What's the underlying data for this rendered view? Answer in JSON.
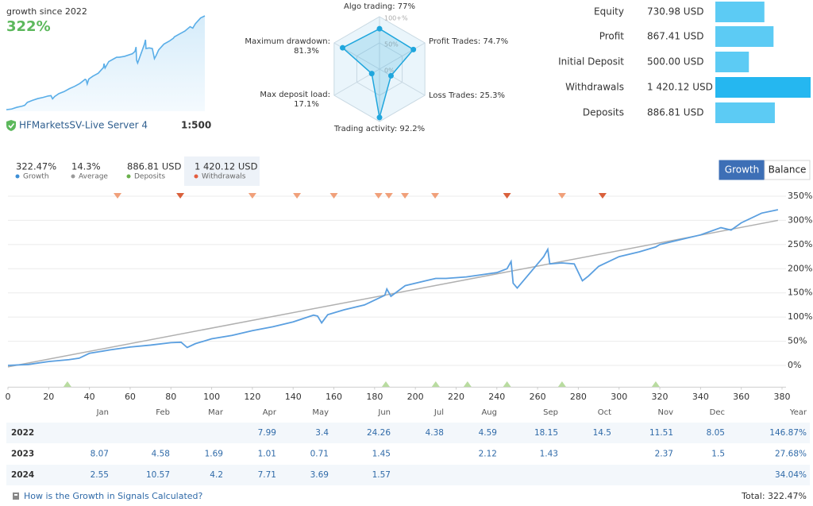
{
  "header": {
    "title": "growth since 2022",
    "growth": "322%",
    "server": "HFMarketsSV-Live Server 4",
    "leverage": "1:500"
  },
  "chart_data": [
    {
      "type": "radar",
      "labels": [
        [
          "Algo trading: 77%"
        ],
        [
          "Profit Trades: 74.7%"
        ],
        [
          "Loss Trades: 25.3%"
        ],
        [
          "Trading activity: 92.2%"
        ],
        [
          "Max deposit load:",
          "17.1%"
        ],
        [
          "Maximum drawdown:",
          "81.3%"
        ]
      ],
      "values": [
        77,
        74.7,
        25.3,
        92.2,
        17.1,
        81.3
      ],
      "rlim": [
        0,
        100
      ],
      "rticks": [
        {
          "value": 100,
          "label": "100+%"
        },
        {
          "value": 50,
          "label": "50%"
        },
        {
          "value": 0,
          "label": "0%"
        }
      ],
      "color": "#1fa6dd"
    },
    {
      "type": "hbar",
      "categories": [
        "Equity",
        "Profit",
        "Initial Deposit",
        "Withdrawals",
        "Deposits"
      ],
      "values": [
        730.98,
        867.41,
        500,
        1420.12,
        886.81
      ],
      "value_labels": [
        "730.98 USD",
        "867.41 USD",
        "500.00 USD",
        "1 420.12 USD",
        "886.81 USD"
      ],
      "colors": [
        "#5ccbf4",
        "#5ccbf4",
        "#5ccbf4",
        "#25b7f0",
        "#5ccbf4"
      ],
      "xlim": [
        0,
        1420.12
      ]
    },
    {
      "type": "line",
      "xlim": [
        0,
        380
      ],
      "xticks": [
        0,
        20,
        40,
        60,
        80,
        100,
        120,
        140,
        160,
        180,
        200,
        220,
        240,
        260,
        280,
        300,
        320,
        340,
        360,
        380
      ],
      "ylim": [
        -45,
        362
      ],
      "yticks": [
        {
          "value": 0,
          "label": "0%"
        },
        {
          "value": 50,
          "label": "50%"
        },
        {
          "value": 100,
          "label": "100%"
        },
        {
          "value": 150,
          "label": "150%"
        },
        {
          "value": 200,
          "label": "200%"
        },
        {
          "value": 250,
          "label": "250%"
        },
        {
          "value": 300,
          "label": "300%"
        },
        {
          "value": 350,
          "label": "350%"
        }
      ],
      "grid": true,
      "series": [
        {
          "color": "#5a9fe0",
          "x": [
            0,
            10,
            20,
            30,
            35,
            40,
            50,
            60,
            70,
            80,
            85,
            88,
            92,
            100,
            110,
            120,
            130,
            140,
            150,
            152,
            154,
            157,
            165,
            175,
            180,
            185,
            186,
            188,
            195,
            205,
            210,
            215,
            225,
            240,
            245,
            247,
            248,
            250,
            252,
            258,
            260,
            263,
            265,
            266,
            272,
            278,
            282,
            285,
            290,
            300,
            310,
            318,
            320,
            330,
            340,
            350,
            355,
            360,
            370,
            378
          ],
          "values": [
            0,
            2,
            8,
            12,
            15,
            25,
            32,
            38,
            42,
            47,
            48,
            37,
            45,
            55,
            62,
            72,
            80,
            90,
            104,
            102,
            88,
            105,
            115,
            125,
            135,
            145,
            158,
            143,
            165,
            175,
            180,
            180,
            183,
            192,
            200,
            215,
            170,
            160,
            170,
            200,
            210,
            225,
            240,
            210,
            212,
            210,
            175,
            185,
            205,
            225,
            235,
            245,
            250,
            260,
            270,
            285,
            280,
            295,
            315,
            322
          ]
        },
        {
          "color": "#b0b0b0",
          "x": [
            0,
            378
          ],
          "values": [
            -3,
            300
          ]
        }
      ],
      "markers": [
        {
          "color": "#f0a07a",
          "direction": "down",
          "x": [
            53.8,
            120,
            141.9,
            160,
            181.9,
            187,
            194.9,
            209.7,
            272
          ]
        },
        {
          "color": "#d9603b",
          "direction": "down",
          "x": [
            84.6,
            245,
            291.9
          ]
        },
        {
          "color": "#b9dca0",
          "direction": "up",
          "x": [
            29.2,
            185.5,
            210,
            225.6,
            245,
            272,
            318
          ]
        }
      ]
    }
  ],
  "stats": {
    "items": [
      {
        "value": "322.47%",
        "label": "Growth",
        "color": "#3d8fd6"
      },
      {
        "value": "14.3%",
        "label": "Average",
        "color": "#9a9a9a"
      },
      {
        "value": "886.81 USD",
        "label": "Deposits",
        "color": "#6ab04c"
      },
      {
        "value": "1 420.12 USD",
        "label": "Withdrawals",
        "color": "#e35d3f"
      }
    ],
    "selected": 3
  },
  "buttons": {
    "labels": [
      "Growth",
      "Balance"
    ],
    "active": 0
  },
  "table": {
    "columns": [
      "Jan",
      "Feb",
      "Mar",
      "Apr",
      "May",
      "Jun",
      "Jul",
      "Aug",
      "Sep",
      "Oct",
      "Nov",
      "Dec",
      "Year"
    ],
    "rows": [
      {
        "label": "2022",
        "cells": [
          null,
          null,
          null,
          7.99,
          3.4,
          24.26,
          4.38,
          4.59,
          18.15,
          14.5,
          11.51,
          8.05,
          "146.87%"
        ]
      },
      {
        "label": "2023",
        "cells": [
          8.07,
          4.58,
          1.69,
          1.01,
          0.71,
          1.45,
          null,
          2.12,
          1.43,
          null,
          2.37,
          1.5,
          "27.68%"
        ]
      },
      {
        "label": "2024",
        "cells": [
          2.55,
          10.57,
          4.2,
          7.71,
          3.69,
          1.57,
          null,
          null,
          null,
          null,
          null,
          null,
          "34.04%"
        ]
      }
    ]
  },
  "footer": {
    "link": "How is the Growth in Signals Calculated?",
    "total": "Total: 322.47%"
  }
}
